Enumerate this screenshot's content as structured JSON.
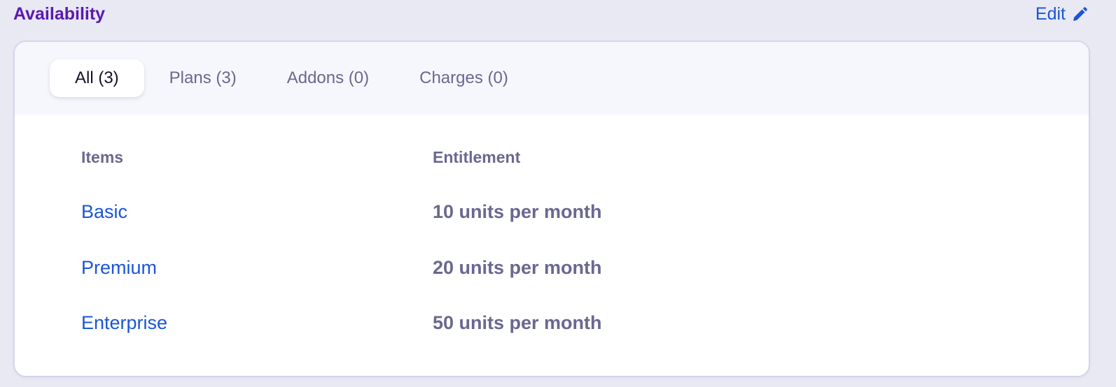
{
  "header": {
    "title": "Availability",
    "edit_label": "Edit",
    "edit_icon": "pencil-icon"
  },
  "tabs": [
    {
      "label": "All (3)",
      "active": true
    },
    {
      "label": "Plans (3)",
      "active": false
    },
    {
      "label": "Addons (0)",
      "active": false
    },
    {
      "label": "Charges (0)",
      "active": false
    }
  ],
  "table": {
    "columns": [
      "Items",
      "Entitlement"
    ],
    "rows": [
      {
        "item": "Basic",
        "entitlement": "10 units per month"
      },
      {
        "item": "Premium",
        "entitlement": "20 units per month"
      },
      {
        "item": "Enterprise",
        "entitlement": "50 units per month"
      }
    ]
  },
  "colors": {
    "title": "#5a1ab0",
    "link": "#1a56d6",
    "muted": "#6a6890",
    "background": "#e9e9f3"
  }
}
